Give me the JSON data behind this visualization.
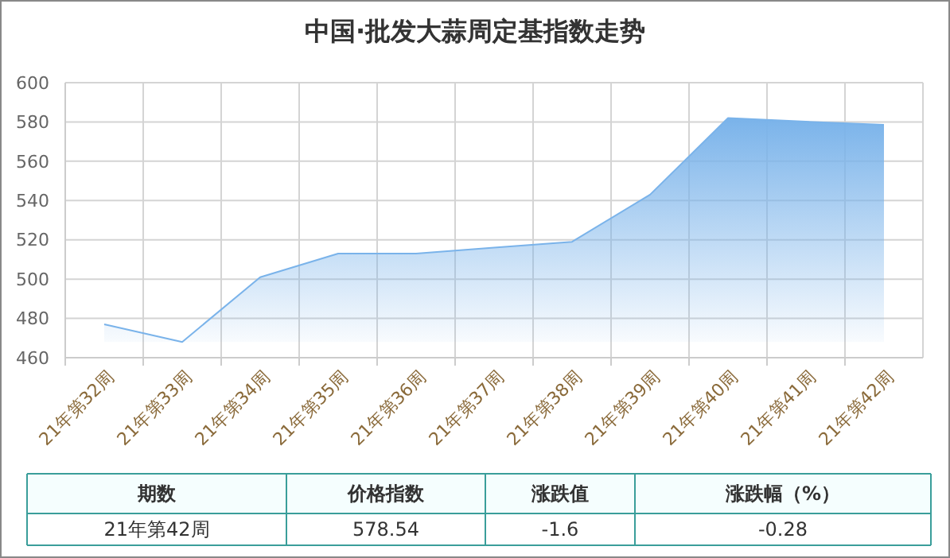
{
  "chart_data": {
    "type": "area",
    "title": "中国·批发大蒜周定基指数走势",
    "categories": [
      "21年第32周",
      "21年第33周",
      "21年第34周",
      "21年第35周",
      "21年第36周",
      "21年第37周",
      "21年第38周",
      "21年第39周",
      "21年第40周",
      "21年第41周",
      "21年第42周"
    ],
    "series": [
      {
        "color": "#7ab3ea",
        "values": [
          477,
          468,
          501,
          513,
          513,
          516,
          519,
          543,
          582,
          580.14,
          578.54
        ]
      }
    ],
    "ylim": [
      460,
      600
    ],
    "yticks": [
      460,
      480,
      500,
      520,
      540,
      560,
      580,
      600
    ],
    "grid": true,
    "annotations": [
      "期数",
      "价格指数",
      "涨跌值",
      "涨跌幅（%）",
      "21年第42周",
      "578.54",
      "-1.6",
      "-0.28"
    ]
  }
}
